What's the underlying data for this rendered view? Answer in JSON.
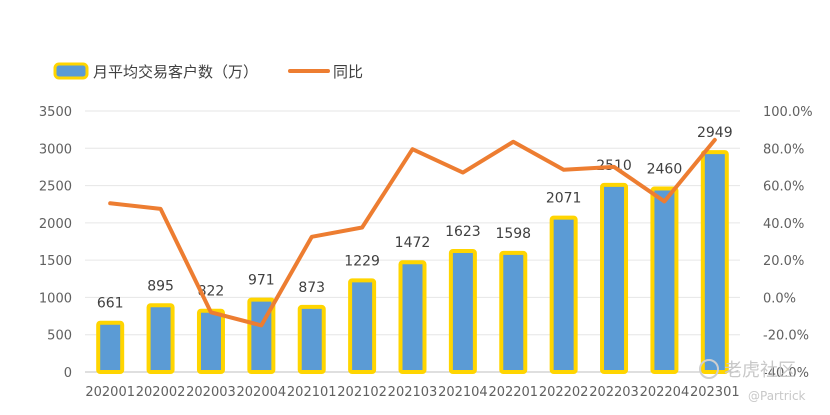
{
  "chart_data": {
    "type": "bar",
    "categories": [
      "202001",
      "202002",
      "202003",
      "202004",
      "202101",
      "202102",
      "202103",
      "202104",
      "202201",
      "202202",
      "202203",
      "202204",
      "202301"
    ],
    "series": [
      {
        "name": "月平均交易客户数（万）",
        "type": "bar",
        "axis": "left",
        "values": [
          661,
          895,
          822,
          971,
          873,
          1229,
          1472,
          1623,
          1598,
          2071,
          2510,
          2460,
          2949
        ]
      },
      {
        "name": "同比",
        "type": "line",
        "axis": "right",
        "values": [
          50.5,
          47.5,
          -8.0,
          -15.0,
          32.5,
          37.5,
          79.5,
          67.0,
          83.5,
          68.5,
          70.0,
          51.5,
          84.5
        ]
      }
    ],
    "yticks_left": [
      "0",
      "500",
      "1000",
      "1500",
      "2000",
      "2500",
      "3000",
      "3500"
    ],
    "ylim_left": [
      0,
      3500
    ],
    "yticks_right": [
      "-40.0%",
      "-20.0%",
      "0.0%",
      "20.0%",
      "40.0%",
      "60.0%",
      "80.0%",
      "100.0%"
    ],
    "ylim_right": [
      -40,
      100
    ],
    "grid": true,
    "legend_position": "top-left",
    "colors": {
      "bar_fill": "#5b9bd5",
      "bar_border": "#ffd500",
      "line": "#ed7d31",
      "grid": "#e6e6e6",
      "axis": "#bfbfbf"
    }
  },
  "watermark": {
    "brand": "老虎社区",
    "handle": "@Partrick"
  }
}
